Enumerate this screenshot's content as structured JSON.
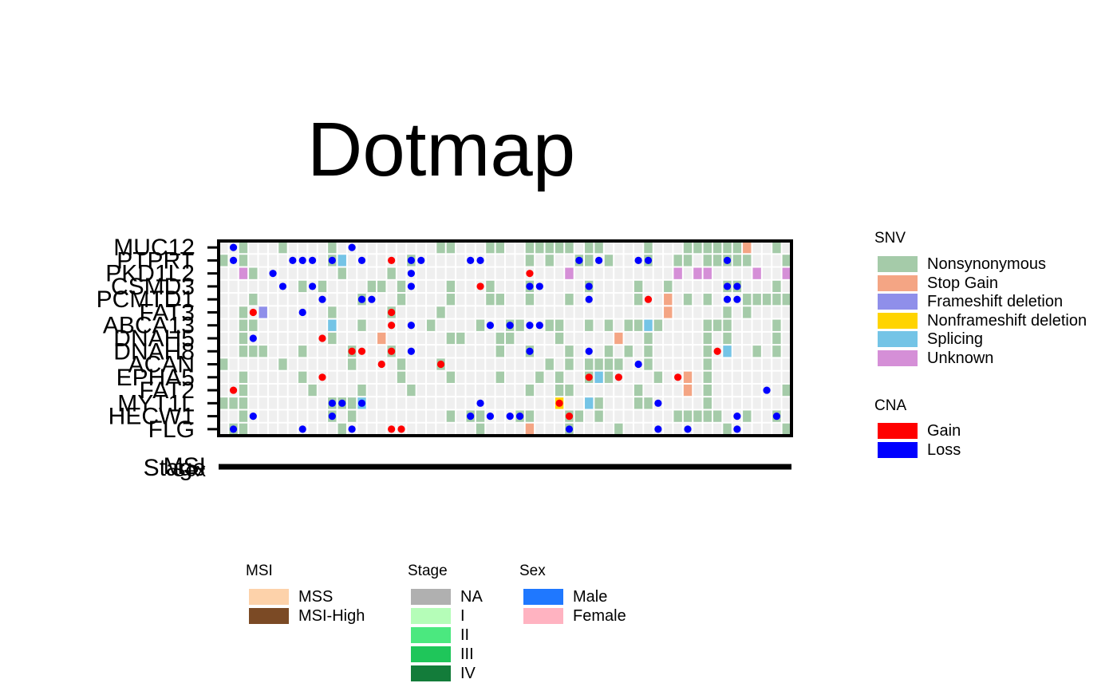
{
  "chart_data": {
    "type": "heatmap",
    "title": "Dotmap",
    "genes": [
      "MUC12",
      "PTPRT",
      "PKD1L2",
      "CSMD3",
      "PCMTD1",
      "FAT3",
      "ABCA13",
      "DNAH5",
      "DNAH8",
      "ACAN",
      "EPHA5",
      "FAT2",
      "MYT1L",
      "HECW1",
      "FLG"
    ],
    "annotation_tracks": [
      "MSI",
      "Sex",
      "Stage"
    ],
    "n_samples": 58,
    "background_color": "#efefef",
    "snv_colors": {
      "Nonsynonymous": "#a5cba9",
      "Stop Gain": "#f4a584",
      "Frameshift deletion": "#8f8fea",
      "Nonframeshift deletion": "#ffd400",
      "Splicing": "#74c4e6",
      "Unknown": "#d58fd7"
    },
    "cna_colors": {
      "Gain": "#ff0000",
      "Loss": "#0000ff"
    },
    "snv": [
      {
        "gene": "MUC12",
        "cols": [
          2,
          6,
          11,
          22,
          23,
          27,
          28,
          31,
          32,
          33,
          34,
          35,
          37,
          38,
          43,
          47,
          48,
          49,
          50,
          51,
          52,
          56
        ],
        "types": {
          "53": "Stop Gain"
        }
      },
      {
        "gene": "PTPRT",
        "cols": [
          0,
          2,
          11,
          19,
          31,
          33,
          36,
          37,
          39,
          43,
          46,
          47,
          49,
          50,
          51,
          52,
          53,
          57
        ],
        "types": {
          "12": "Splicing"
        }
      },
      {
        "gene": "PKD1L2",
        "cols": [
          3,
          12,
          17,
          35
        ],
        "types": {
          "2": "Unknown",
          "35": "Unknown",
          "46": "Unknown",
          "48": "Unknown",
          "49": "Unknown",
          "54": "Unknown",
          "57": "Unknown"
        }
      },
      {
        "gene": "CSMD3",
        "cols": [
          8,
          10,
          15,
          16,
          18,
          23,
          27,
          31,
          37,
          42,
          45,
          51,
          52,
          56
        ],
        "types": {}
      },
      {
        "gene": "PCMTD1",
        "cols": [
          3,
          14,
          18,
          23,
          27,
          28,
          31,
          35,
          42,
          45,
          47,
          49,
          53,
          54,
          55,
          56,
          57
        ],
        "types": {
          "45": "Stop Gain"
        }
      },
      {
        "gene": "FAT3",
        "cols": [
          2,
          11,
          17,
          22,
          51,
          53
        ],
        "types": {
          "4": "Frameshift deletion",
          "45": "Stop Gain"
        }
      },
      {
        "gene": "ABCA13",
        "cols": [
          2,
          3,
          14,
          21,
          26,
          29,
          30,
          33,
          34,
          37,
          39,
          41,
          42,
          43,
          44,
          49,
          50,
          51,
          56
        ],
        "types": {
          "11": "Splicing",
          "43": "Splicing"
        }
      },
      {
        "gene": "DNAH5",
        "cols": [
          2,
          11,
          23,
          24,
          28,
          29,
          34,
          43,
          49,
          51,
          56
        ],
        "types": {
          "16": "Stop Gain",
          "40": "Stop Gain"
        }
      },
      {
        "gene": "DNAH8",
        "cols": [
          2,
          3,
          4,
          8,
          13,
          17,
          28,
          31,
          35,
          39,
          41,
          43,
          49,
          54,
          56
        ],
        "types": {
          "51": "Splicing"
        }
      },
      {
        "gene": "ACAN",
        "cols": [
          0,
          6,
          13,
          18,
          22,
          33,
          35,
          37,
          38,
          39,
          40,
          43,
          49
        ],
        "types": {}
      },
      {
        "gene": "EPHA5",
        "cols": [
          2,
          8,
          18,
          23,
          28,
          32,
          34,
          37,
          39,
          44,
          47,
          49
        ],
        "types": {
          "38": "Splicing",
          "47": "Stop Gain"
        }
      },
      {
        "gene": "FAT2",
        "cols": [
          2,
          9,
          14,
          19,
          31,
          34,
          35,
          42,
          49,
          57
        ],
        "types": {
          "47": "Stop Gain"
        }
      },
      {
        "gene": "MYT1L",
        "cols": [
          0,
          1,
          2,
          11,
          12,
          13,
          14,
          34,
          38,
          42,
          43,
          49
        ],
        "types": {
          "34": "Nonframeshift deletion",
          "37": "Splicing",
          "14": "Splicing"
        }
      },
      {
        "gene": "HECW1",
        "cols": [
          2,
          11,
          13,
          23,
          25,
          26,
          30,
          31,
          35,
          36,
          38,
          46,
          47,
          48,
          49,
          50,
          53,
          56
        ],
        "types": {}
      },
      {
        "gene": "FLG",
        "cols": [
          1,
          2,
          12,
          26,
          35,
          40,
          51,
          57
        ],
        "types": {
          "31": "Stop Gain"
        }
      }
    ],
    "cna": [
      {
        "gene": "MUC12",
        "cols": [
          1,
          13
        ],
        "types": {}
      },
      {
        "gene": "PTPRT",
        "cols": [
          1,
          7,
          8,
          9,
          11,
          14,
          19,
          20,
          25,
          26,
          36,
          38,
          42,
          43,
          51
        ],
        "types": {
          "17": "Gain"
        }
      },
      {
        "gene": "PKD1L2",
        "cols": [
          5,
          19
        ],
        "types": {
          "31": "Gain"
        }
      },
      {
        "gene": "CSMD3",
        "cols": [
          6,
          9,
          19,
          31,
          32,
          37,
          51,
          52
        ],
        "types": {
          "26": "Gain"
        }
      },
      {
        "gene": "PCMTD1",
        "cols": [
          10,
          14,
          15,
          37,
          51,
          52
        ],
        "types": {
          "43": "Gain"
        }
      },
      {
        "gene": "FAT3",
        "cols": [
          8
        ],
        "types": {
          "3": "Gain",
          "17": "Gain"
        }
      },
      {
        "gene": "ABCA13",
        "cols": [
          19,
          27,
          29,
          31,
          32
        ],
        "types": {
          "17": "Gain"
        }
      },
      {
        "gene": "DNAH5",
        "cols": [
          3
        ],
        "types": {
          "10": "Gain"
        }
      },
      {
        "gene": "DNAH8",
        "cols": [
          19,
          31,
          37
        ],
        "types": {
          "13": "Gain",
          "14": "Gain",
          "17": "Gain",
          "50": "Gain"
        }
      },
      {
        "gene": "ACAN",
        "cols": [
          42
        ],
        "types": {
          "16": "Gain",
          "22": "Gain"
        }
      },
      {
        "gene": "EPHA5",
        "cols": [],
        "types": {
          "10": "Gain",
          "37": "Gain",
          "40": "Gain",
          "46": "Gain"
        }
      },
      {
        "gene": "FAT2",
        "cols": [
          55
        ],
        "types": {
          "1": "Gain"
        }
      },
      {
        "gene": "MYT1L",
        "cols": [
          11,
          12,
          14,
          26,
          44
        ],
        "types": {
          "34": "Gain"
        }
      },
      {
        "gene": "HECW1",
        "cols": [
          3,
          11,
          25,
          27,
          29,
          30,
          52,
          56
        ],
        "types": {
          "35": "Gain"
        }
      },
      {
        "gene": "FLG",
        "cols": [
          1,
          8,
          13,
          35,
          44,
          47,
          52
        ],
        "types": {
          "17": "Gain",
          "18": "Gain"
        }
      }
    ],
    "legend_snv_title": "SNV",
    "legend_snv": [
      "Nonsynonymous",
      "Stop Gain",
      "Frameshift deletion",
      "Nonframeshift deletion",
      "Splicing",
      "Unknown"
    ],
    "legend_cna_title": "CNA",
    "legend_cna": [
      "Gain",
      "Loss"
    ],
    "legend_msi_title": "MSI",
    "legend_msi": [
      {
        "label": "MSS",
        "color": "#fdd2aa"
      },
      {
        "label": "MSI-High",
        "color": "#7b4a25"
      }
    ],
    "legend_stage_title": "Stage",
    "legend_stage": [
      {
        "label": "NA",
        "color": "#b0b0b0"
      },
      {
        "label": "I",
        "color": "#b5fdb8"
      },
      {
        "label": "II",
        "color": "#4be87f"
      },
      {
        "label": "III",
        "color": "#1fc65a"
      },
      {
        "label": "IV",
        "color": "#137c3a"
      }
    ],
    "legend_sex_title": "Sex",
    "legend_sex": [
      {
        "label": "Male",
        "color": "#1f78ff"
      },
      {
        "label": "Female",
        "color": "#ffb3c1"
      }
    ]
  }
}
